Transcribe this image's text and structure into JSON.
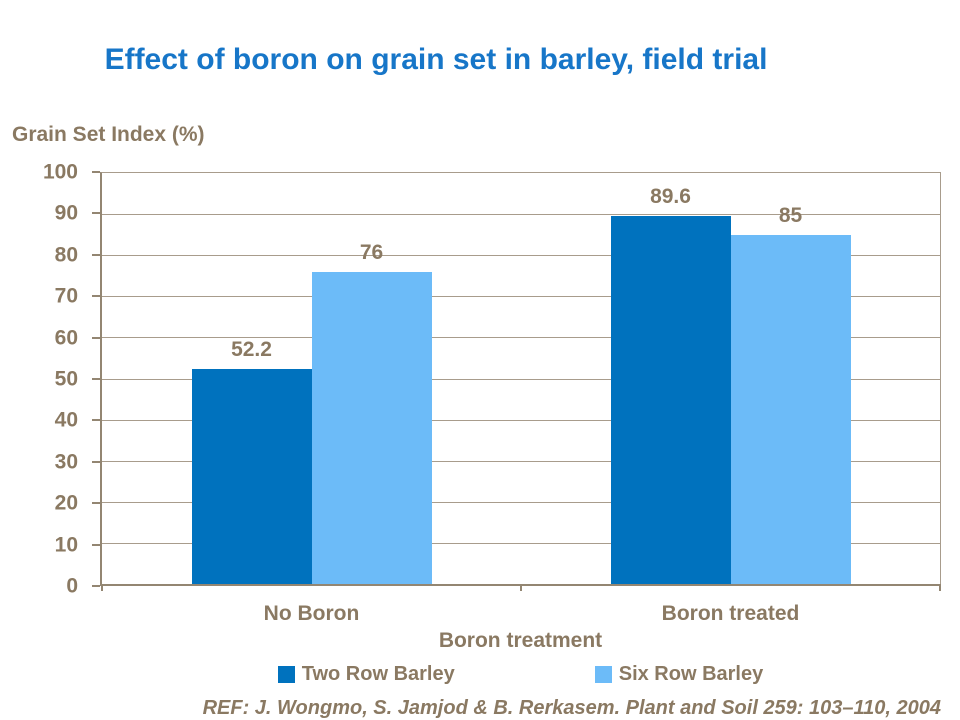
{
  "colors": {
    "title_blue": "#1776C8",
    "text_brown": "#8A7962",
    "gridline": "#A89C8C",
    "axis_dark": "#938672",
    "series1_dark_blue": "#0072BE",
    "series2_light_blue": "#6CBBF8"
  },
  "chart_data": {
    "type": "bar",
    "title": "Effect of boron on grain set in barley, field trial",
    "ylabel": "Grain Set Index (%)",
    "xlabel": "Boron treatment",
    "categories": [
      "No Boron",
      "Boron treated"
    ],
    "series": [
      {
        "name": "Two Row Barley",
        "color": "#0072BE",
        "values": [
          52.2,
          89.6
        ],
        "value_labels": [
          "52.2",
          "89.6"
        ]
      },
      {
        "name": "Six Row Barley",
        "color": "#6CBBF8",
        "values": [
          76,
          85
        ],
        "value_labels": [
          "76",
          "85"
        ]
      }
    ],
    "ylim": [
      0,
      100
    ],
    "ytick_step": 10,
    "grid": true,
    "legend_position": "bottom"
  },
  "footer": {
    "ref": "REF: J. Wongmo, S. Jamjod & B. Rerkasem. Plant and Soil 259: 103–110, 2004"
  }
}
